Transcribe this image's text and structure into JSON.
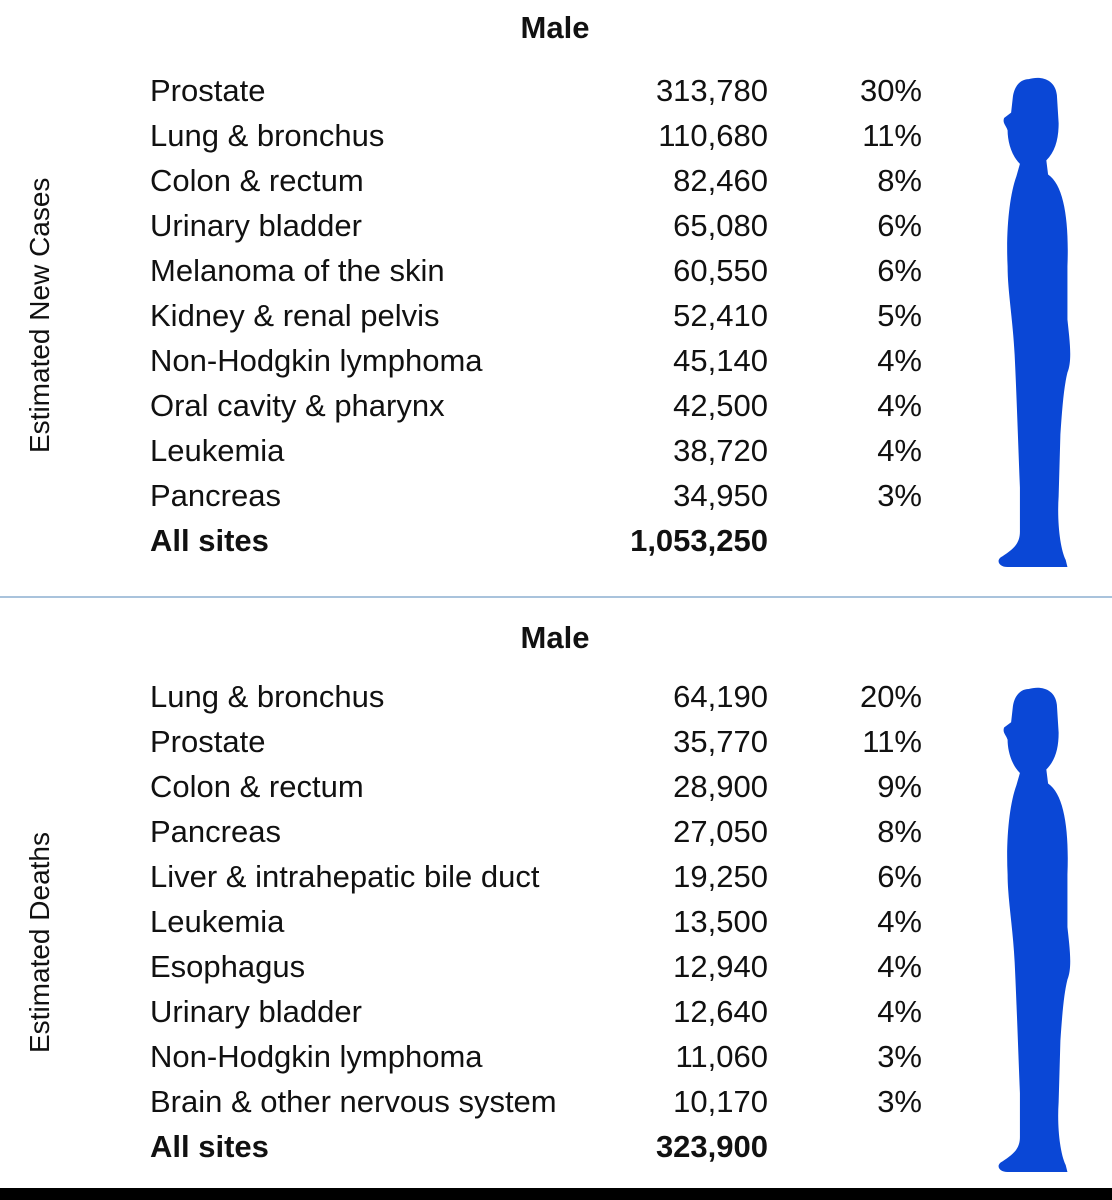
{
  "colors": {
    "figure": "#0a47d6",
    "divider": "#a9c3dc",
    "text": "#111111"
  },
  "new_cases": {
    "sex": "Male",
    "side_label": "Estimated New Cases",
    "rows": [
      {
        "site": "Prostate",
        "count": "313,780",
        "pct": "30%"
      },
      {
        "site": "Lung & bronchus",
        "count": "110,680",
        "pct": "11%"
      },
      {
        "site": "Colon & rectum",
        "count": "82,460",
        "pct": "8%"
      },
      {
        "site": "Urinary bladder",
        "count": "65,080",
        "pct": "6%"
      },
      {
        "site": "Melanoma of the skin",
        "count": "60,550",
        "pct": "6%"
      },
      {
        "site": "Kidney & renal pelvis",
        "count": "52,410",
        "pct": "5%"
      },
      {
        "site": "Non-Hodgkin lymphoma",
        "count": "45,140",
        "pct": "4%"
      },
      {
        "site": "Oral cavity & pharynx",
        "count": "42,500",
        "pct": "4%"
      },
      {
        "site": "Leukemia",
        "count": "38,720",
        "pct": "4%"
      },
      {
        "site": "Pancreas",
        "count": "34,950",
        "pct": "3%"
      }
    ],
    "total": {
      "site": "All sites",
      "count": "1,053,250"
    },
    "figure_icon": "male-silhouette-icon"
  },
  "deaths": {
    "sex": "Male",
    "side_label": "Estimated Deaths",
    "rows": [
      {
        "site": "Lung & bronchus",
        "count": "64,190",
        "pct": "20%"
      },
      {
        "site": "Prostate",
        "count": "35,770",
        "pct": "11%"
      },
      {
        "site": "Colon & rectum",
        "count": "28,900",
        "pct": "9%"
      },
      {
        "site": "Pancreas",
        "count": "27,050",
        "pct": "8%"
      },
      {
        "site": "Liver & intrahepatic bile duct",
        "count": "19,250",
        "pct": "6%"
      },
      {
        "site": "Leukemia",
        "count": "13,500",
        "pct": "4%"
      },
      {
        "site": "Esophagus",
        "count": "12,940",
        "pct": "4%"
      },
      {
        "site": "Urinary bladder",
        "count": "12,640",
        "pct": "4%"
      },
      {
        "site": "Non-Hodgkin lymphoma",
        "count": "11,060",
        "pct": "3%"
      },
      {
        "site": "Brain & other nervous system",
        "count": "10,170",
        "pct": "3%"
      }
    ],
    "total": {
      "site": "All sites",
      "count": "323,900"
    },
    "figure_icon": "male-silhouette-icon"
  }
}
